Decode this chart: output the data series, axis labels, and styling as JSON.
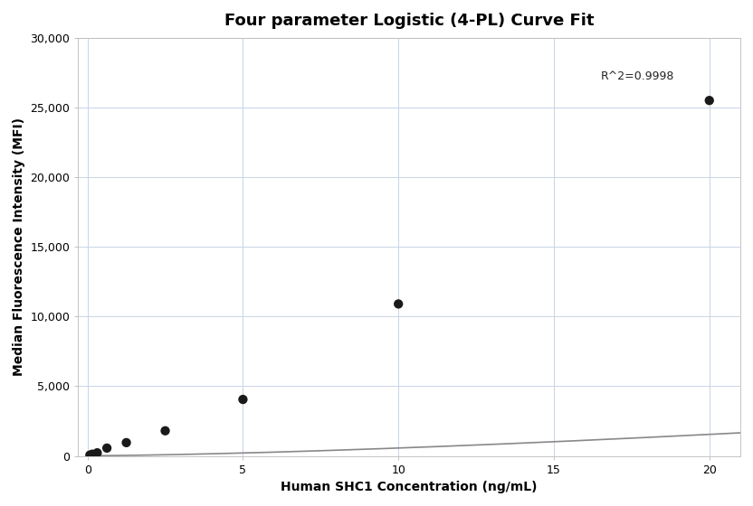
{
  "title": "Four parameter Logistic (4-PL) Curve Fit",
  "xlabel": "Human SHC1 Concentration (ng/mL)",
  "ylabel": "Median Fluorescence Intensity (MFI)",
  "scatter_x": [
    0.078,
    0.156,
    0.313,
    0.625,
    1.25,
    2.5,
    5.0,
    10.0,
    20.0
  ],
  "scatter_y": [
    60,
    120,
    220,
    560,
    950,
    1800,
    4050,
    10900,
    25500
  ],
  "xlim": [
    -0.3,
    21
  ],
  "ylim": [
    0,
    30000
  ],
  "xticks": [
    0,
    5,
    10,
    15,
    20
  ],
  "yticks": [
    0,
    5000,
    10000,
    15000,
    20000,
    25000,
    30000
  ],
  "r2_text": "R^2=0.9998",
  "r2_x": 16.5,
  "r2_y": 27200,
  "dot_color": "#1a1a1a",
  "line_color": "#888888",
  "grid_color": "#c8d4e8",
  "background_color": "#ffffff",
  "title_fontsize": 13,
  "label_fontsize": 10,
  "tick_fontsize": 9,
  "annotation_fontsize": 9
}
